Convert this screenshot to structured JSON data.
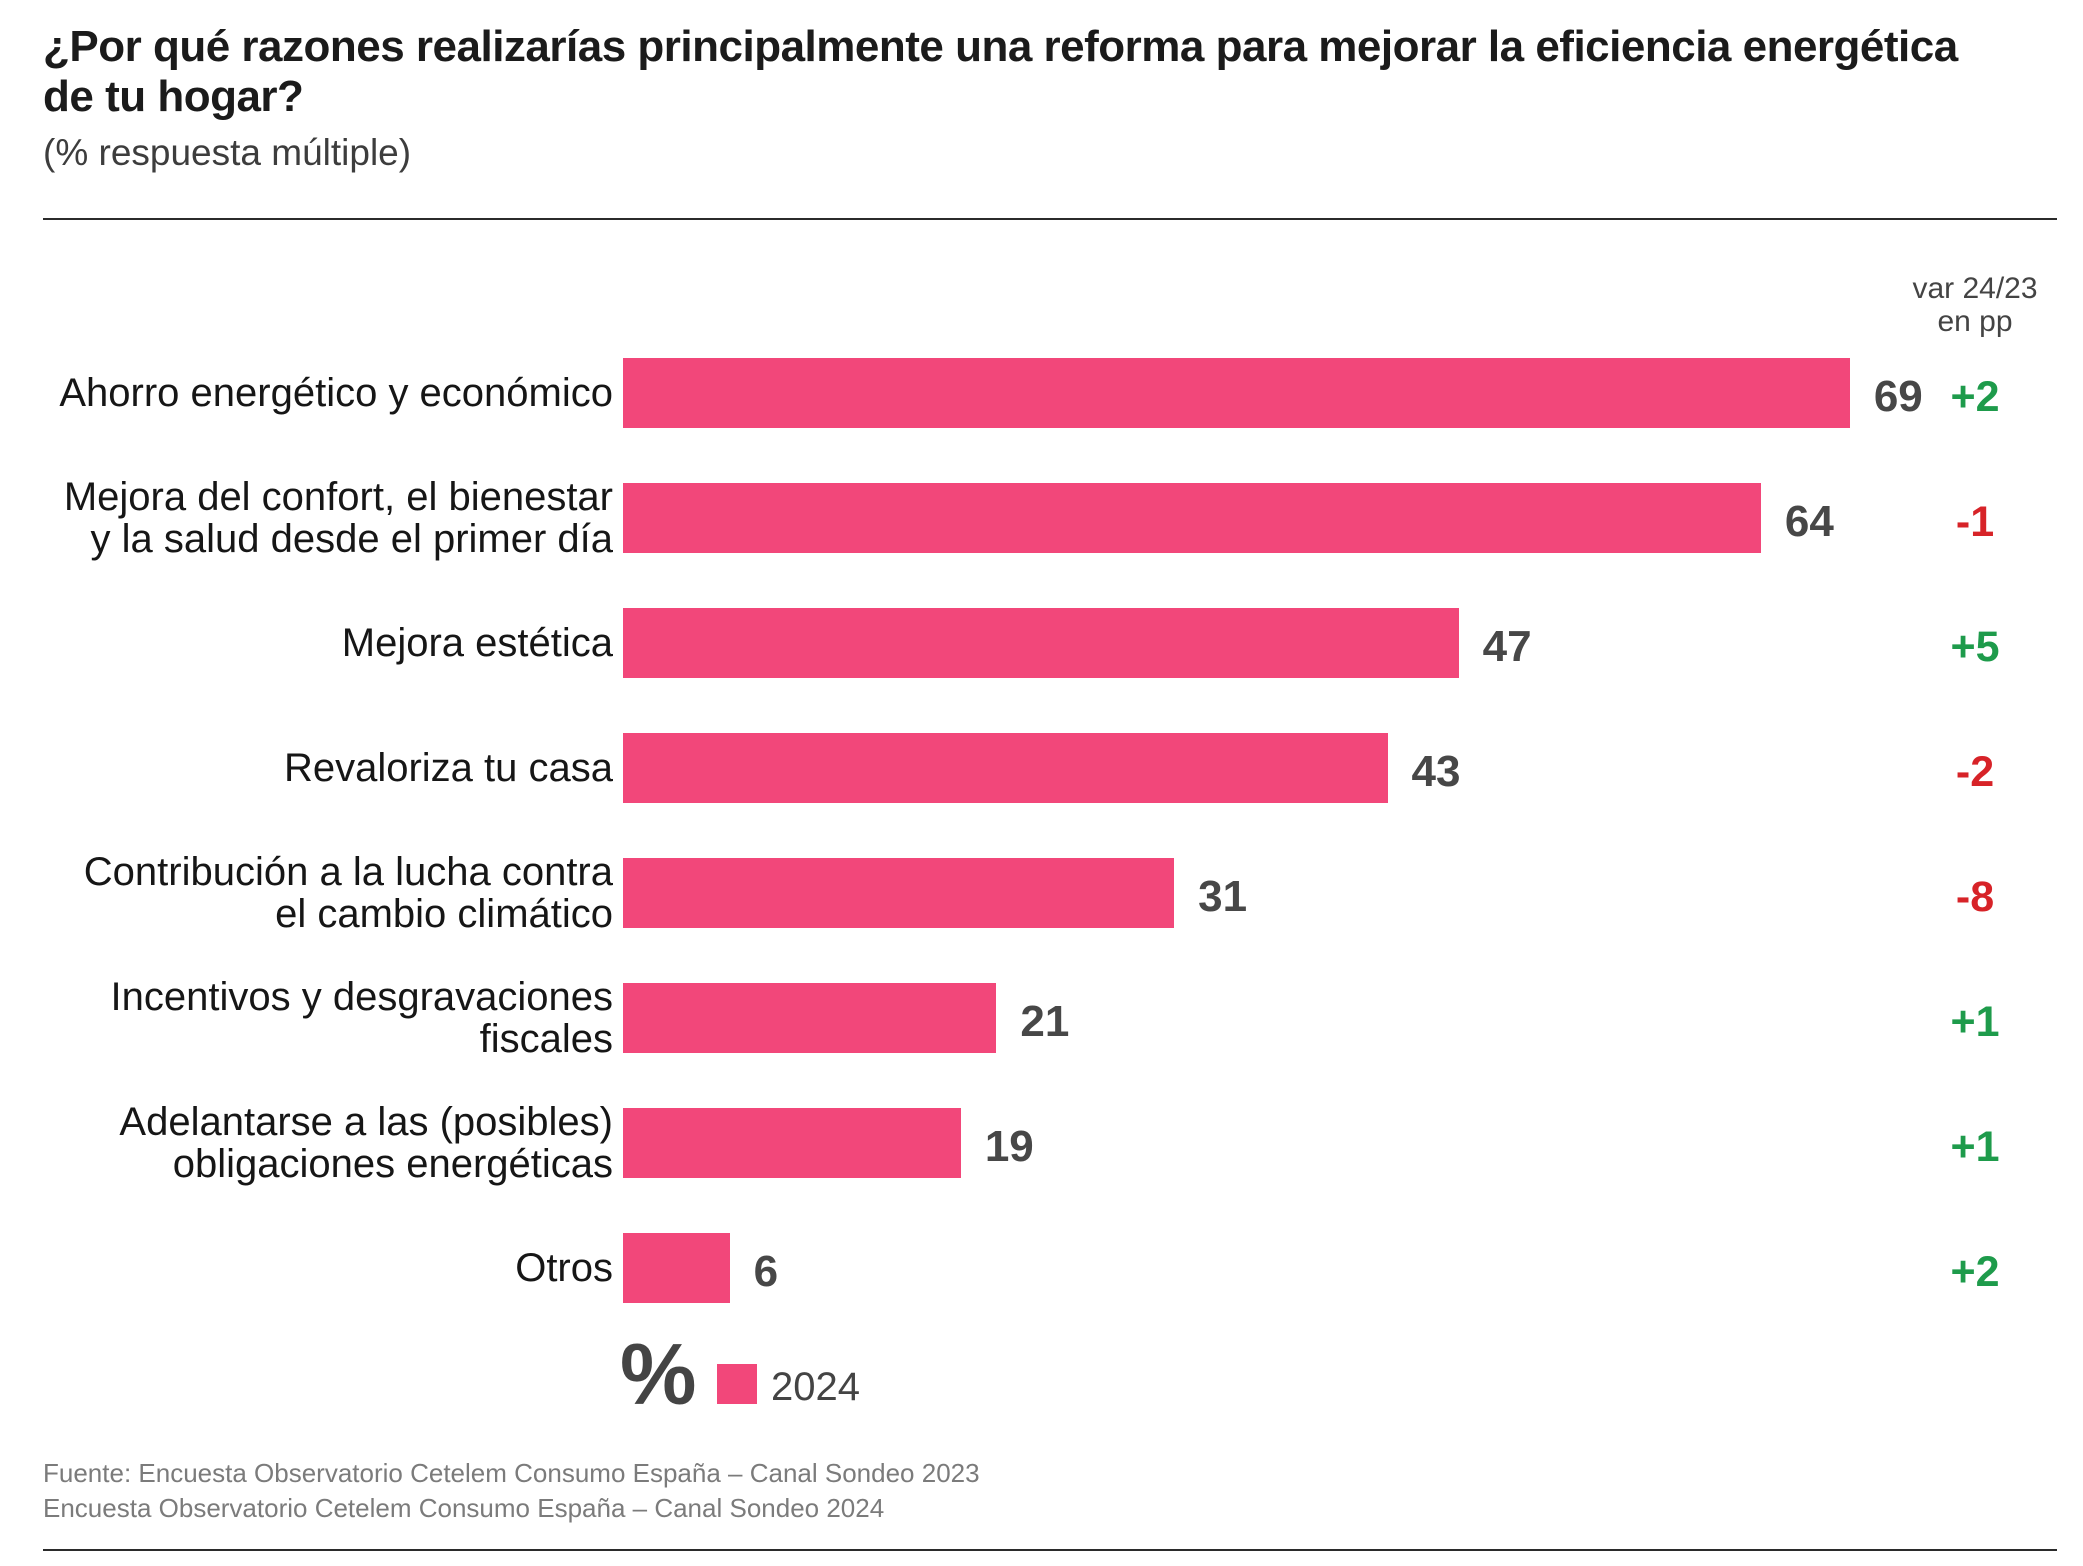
{
  "colors": {
    "bar": "#f2477a",
    "increase": "#1e9b4b",
    "decrease": "#d72328",
    "value_label": "#474747"
  },
  "chart_data": {
    "type": "bar",
    "orientation": "horizontal",
    "title": "¿Por qué razones realizarías principalmente una reforma para mejorar la eficiencia energética de tu hogar?",
    "subtitle": "(% respuesta múltiple)",
    "unit": "%",
    "categories": [
      "Ahorro energético y económico",
      "Mejora del confort, el bienestar\ny la salud desde el primer día",
      "Mejora estética",
      "Revaloriza tu casa",
      "Contribución a la lucha contra\nel cambio climático",
      "Incentivos y desgravaciones\nfiscales",
      "Adelantarse a las (posibles)\nobligaciones energéticas",
      "Otros"
    ],
    "series": [
      {
        "name": "2024",
        "values": [
          69,
          64,
          47,
          43,
          31,
          21,
          19,
          6
        ]
      }
    ],
    "variation_header": [
      "var 24/23",
      "en pp"
    ],
    "variation_24_23_pp": [
      "+2",
      "-1",
      "+5",
      "-2",
      "-8",
      "+1",
      "+1",
      "+2"
    ],
    "value_labels": true,
    "grid": false,
    "legend_position": "bottom-left"
  },
  "source": [
    "Fuente: Encuesta Observatorio Cetelem Consumo España – Canal Sondeo 2023",
    "Encuesta Observatorio Cetelem Consumo España – Canal Sondeo 2024"
  ]
}
